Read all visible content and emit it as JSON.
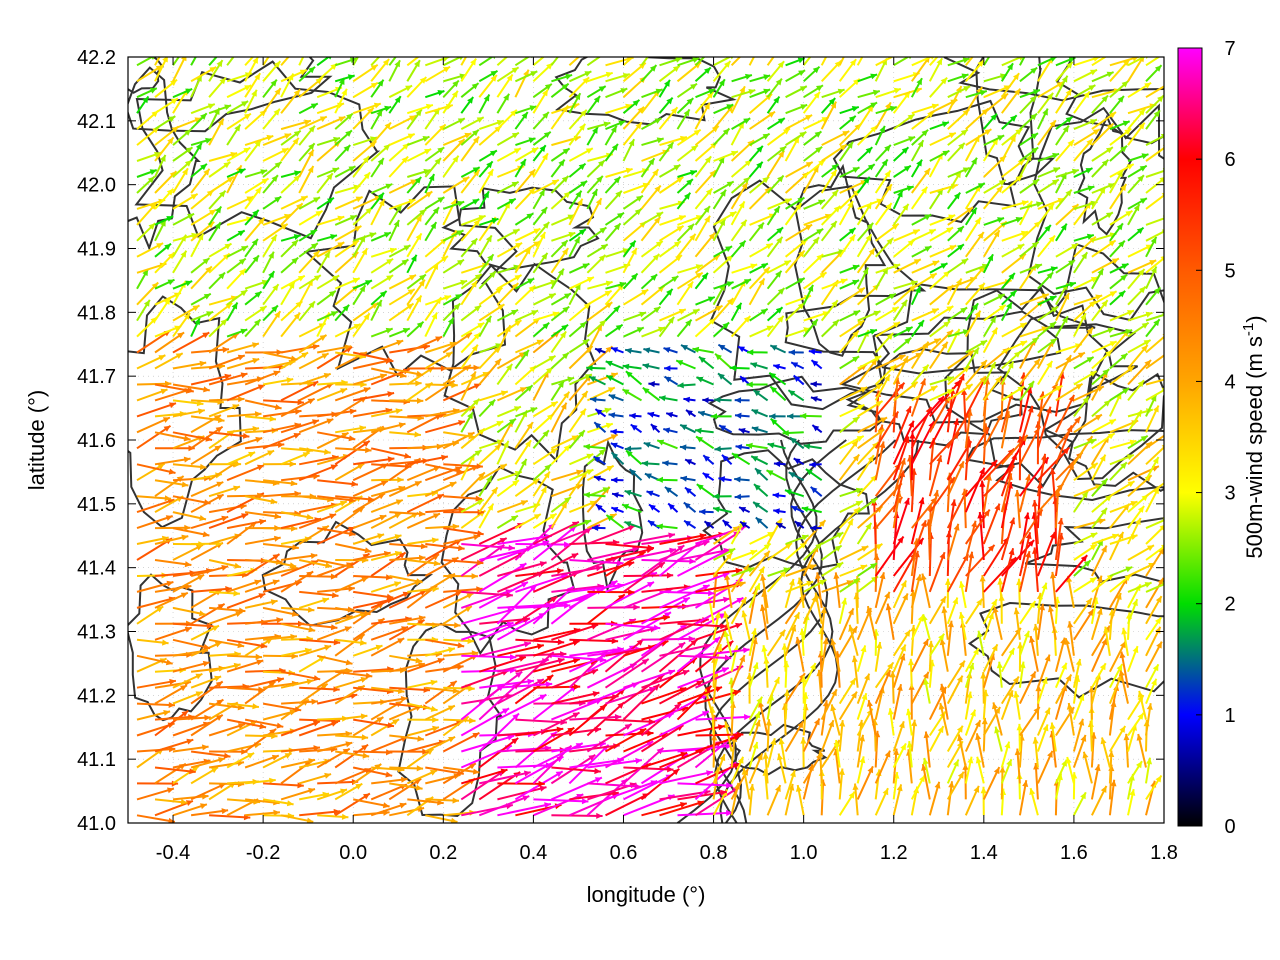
{
  "chart_data": {
    "type": "vector-field",
    "xlabel": "longitude (°)",
    "ylabel": "latitude (°)",
    "colorbar_label_main": "500m-wind speed (m s",
    "colorbar_label_sup": "-1",
    "colorbar_label_end": ")",
    "xlim": [
      -0.5,
      1.8
    ],
    "ylim": [
      41.0,
      42.2
    ],
    "xticks": [
      -0.4,
      -0.2,
      0.0,
      0.2,
      0.4,
      0.6,
      0.8,
      1.0,
      1.2,
      1.4,
      1.6,
      1.8
    ],
    "xtick_labels": [
      "-0.4",
      "-0.2",
      "0.0",
      "0.2",
      "0.4",
      "0.6",
      "0.8",
      "1.0",
      "1.2",
      "1.4",
      "1.6",
      "1.8"
    ],
    "yticks": [
      41.0,
      41.1,
      41.2,
      41.3,
      41.4,
      41.5,
      41.6,
      41.7,
      41.8,
      41.9,
      42.0,
      42.1,
      42.2
    ],
    "ytick_labels": [
      "41.0",
      "41.1",
      "41.2",
      "41.3",
      "41.4",
      "41.5",
      "41.6",
      "41.7",
      "41.8",
      "41.9",
      "42.0",
      "42.1",
      "42.2"
    ],
    "colorbar": {
      "range": [
        0,
        7
      ],
      "ticks": [
        0,
        1,
        2,
        3,
        4,
        5,
        6,
        7
      ],
      "tick_labels": [
        "0",
        "1",
        "2",
        "3",
        "4",
        "5",
        "6",
        "7"
      ],
      "stops": [
        {
          "value": 0,
          "color": "#000000"
        },
        {
          "value": 1,
          "color": "#0000ff"
        },
        {
          "value": 2,
          "color": "#00dd00"
        },
        {
          "value": 3,
          "color": "#ffff00"
        },
        {
          "value": 4,
          "color": "#ffa500"
        },
        {
          "value": 5,
          "color": "#ff5a00"
        },
        {
          "value": 6,
          "color": "#ff0000"
        },
        {
          "value": 7,
          "color": "#ff00ff"
        }
      ]
    },
    "grid": true,
    "contour_color": "#333333",
    "vector_grid": {
      "dx": 0.04,
      "dy": 0.025
    },
    "regions": [
      {
        "lon": [
          -0.5,
          0.2
        ],
        "lat": [
          41.0,
          41.75
        ],
        "speed": 4.3,
        "dir_deg": 168
      },
      {
        "lon": [
          0.2,
          0.8
        ],
        "lat": [
          41.0,
          41.45
        ],
        "speed": 6.6,
        "dir_deg": 160
      },
      {
        "lon": [
          0.8,
          1.8
        ],
        "lat": [
          41.0,
          41.35
        ],
        "speed": 3.6,
        "dir_deg": 100
      },
      {
        "lon": [
          1.15,
          1.6
        ],
        "lat": [
          41.35,
          41.65
        ],
        "speed": 5.3,
        "dir_deg": 110
      },
      {
        "lon": [
          0.55,
          1.05
        ],
        "lat": [
          41.45,
          41.85
        ],
        "speed": 1.5,
        "dir_deg": 20
      },
      {
        "lon": [
          -0.5,
          1.8
        ],
        "lat": [
          41.75,
          42.2
        ],
        "speed": 2.8,
        "dir_deg": 140
      }
    ]
  }
}
